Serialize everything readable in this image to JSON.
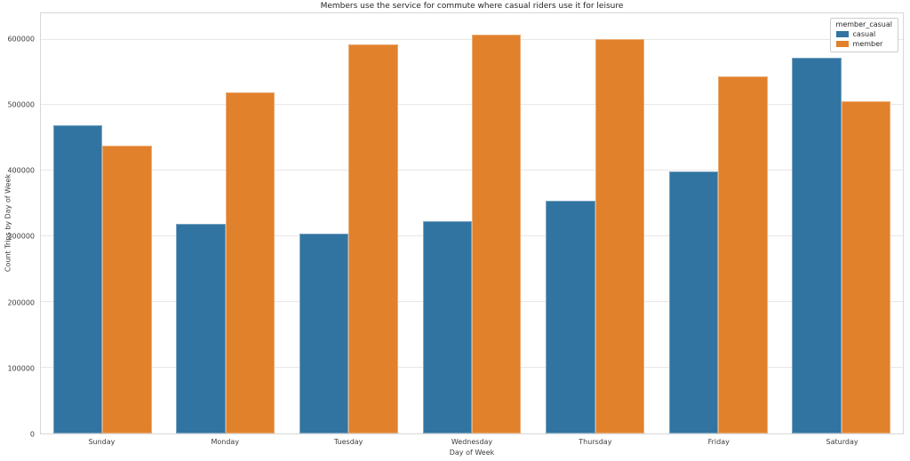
{
  "chart_data": {
    "type": "bar",
    "title": "Members use the service for commute where casual riders use it for leisure",
    "xlabel": "Day of Week",
    "ylabel": "Count Trips by Day of Week",
    "categories": [
      "Sunday",
      "Monday",
      "Tuesday",
      "Wednesday",
      "Thursday",
      "Friday",
      "Saturday"
    ],
    "series": [
      {
        "name": "casual",
        "color": "#3274a1",
        "values": [
          470000,
          319000,
          305000,
          323000,
          354000,
          399000,
          572000
        ]
      },
      {
        "name": "member",
        "color": "#e1812c",
        "values": [
          438000,
          520000,
          592000,
          607000,
          601000,
          544000,
          506000
        ]
      }
    ],
    "ylim": [
      0,
      640000
    ],
    "yticks": [
      0,
      100000,
      200000,
      300000,
      400000,
      500000,
      600000
    ],
    "grid": "horizontal",
    "legend": {
      "title": "member_casual",
      "position": "upper right"
    }
  }
}
